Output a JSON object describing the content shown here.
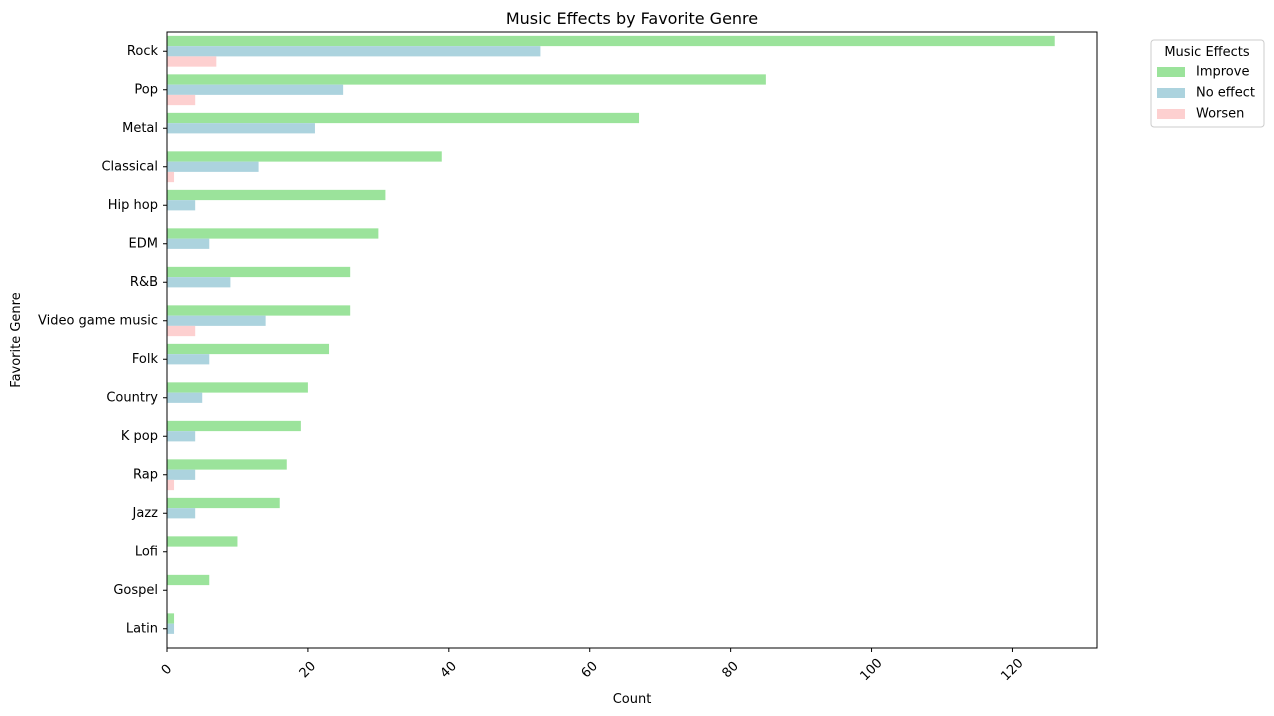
{
  "chart_data": {
    "type": "bar",
    "orientation": "horizontal",
    "title": "Music Effects by Favorite Genre",
    "xlabel": "Count",
    "ylabel": "Favorite Genre",
    "xlim": [
      0,
      132
    ],
    "xticks": [
      0,
      20,
      40,
      60,
      80,
      100,
      120
    ],
    "grid": false,
    "legend_title": "Music Effects",
    "legend_position": "outside-top-right",
    "categories": [
      "Rock",
      "Pop",
      "Metal",
      "Classical",
      "Hip hop",
      "EDM",
      "R&B",
      "Video game music",
      "Folk",
      "Country",
      "K pop",
      "Rap",
      "Jazz",
      "Lofi",
      "Gospel",
      "Latin"
    ],
    "series": [
      {
        "name": "Improve",
        "color": "#9be39b",
        "values": [
          126,
          85,
          67,
          39,
          31,
          30,
          26,
          26,
          23,
          20,
          19,
          17,
          16,
          10,
          6,
          1
        ]
      },
      {
        "name": "No effect",
        "color": "#acd3de",
        "values": [
          53,
          25,
          21,
          13,
          4,
          6,
          9,
          14,
          6,
          5,
          4,
          4,
          4,
          0,
          0,
          1
        ]
      },
      {
        "name": "Worsen",
        "color": "#fdd0d0",
        "values": [
          7,
          4,
          0,
          1,
          0,
          0,
          0,
          4,
          0,
          0,
          0,
          1,
          0,
          0,
          0,
          0
        ]
      }
    ]
  }
}
